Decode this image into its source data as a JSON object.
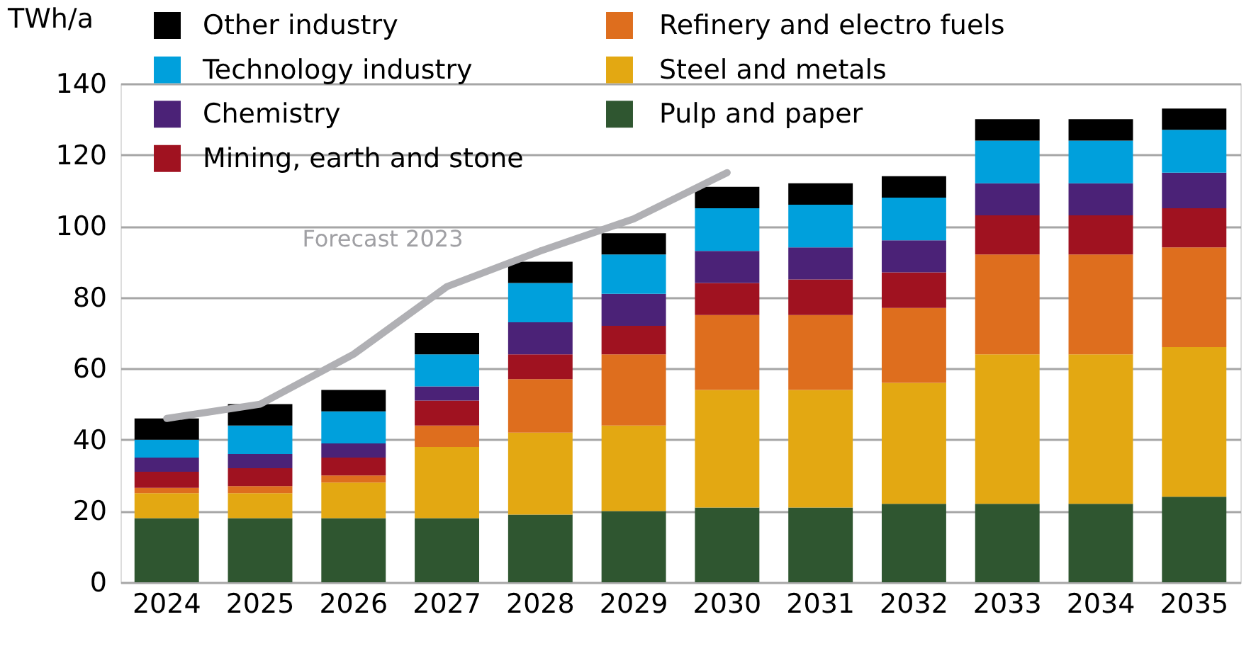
{
  "chart_data": {
    "type": "bar",
    "stacked": true,
    "ylabel": "TWh/a",
    "categories": [
      "2024",
      "2025",
      "2026",
      "2027",
      "2028",
      "2029",
      "2030",
      "2031",
      "2032",
      "2033",
      "2034",
      "2035"
    ],
    "ylim": [
      0,
      140
    ],
    "yticks": [
      0,
      20,
      40,
      60,
      80,
      100,
      120,
      140
    ],
    "grid": "y",
    "legend": "top left",
    "series": [
      {
        "name": "Pulp and paper",
        "color": "#2f5630",
        "values": [
          18,
          18,
          18,
          18,
          19,
          20,
          21,
          21,
          22,
          22,
          22,
          24
        ]
      },
      {
        "name": "Steel and metals",
        "color": "#e3a812",
        "values": [
          7,
          7,
          10,
          20,
          23,
          24,
          33,
          33,
          34,
          42,
          42,
          42
        ]
      },
      {
        "name": "Refinery and electro fuels",
        "color": "#de6e1e",
        "values": [
          1.5,
          2,
          2,
          6,
          15,
          20,
          21,
          21,
          21,
          28,
          28,
          28
        ]
      },
      {
        "name": "Mining, earth and stone",
        "color": "#a01220",
        "values": [
          4.5,
          5,
          5,
          7,
          7,
          8,
          9,
          10,
          10,
          11,
          11,
          11
        ]
      },
      {
        "name": "Chemistry",
        "color": "#4b2277",
        "values": [
          4,
          4,
          4,
          4,
          9,
          9,
          9,
          9,
          9,
          9,
          9,
          10
        ]
      },
      {
        "name": "Technology industry",
        "color": "#00a0dc",
        "values": [
          5,
          8,
          9,
          9,
          11,
          11,
          12,
          12,
          12,
          12,
          12,
          12
        ]
      },
      {
        "name": "Other industry",
        "color": "#000000",
        "values": [
          6,
          6,
          6,
          6,
          6,
          6,
          6,
          6,
          6,
          6,
          6,
          6
        ]
      },
      {
        "name": "Forecast 2023",
        "type": "line",
        "color": "#b0b0b4",
        "values": [
          46,
          50,
          64,
          83,
          93,
          102,
          115,
          null,
          null,
          null,
          null,
          null
        ]
      }
    ]
  }
}
